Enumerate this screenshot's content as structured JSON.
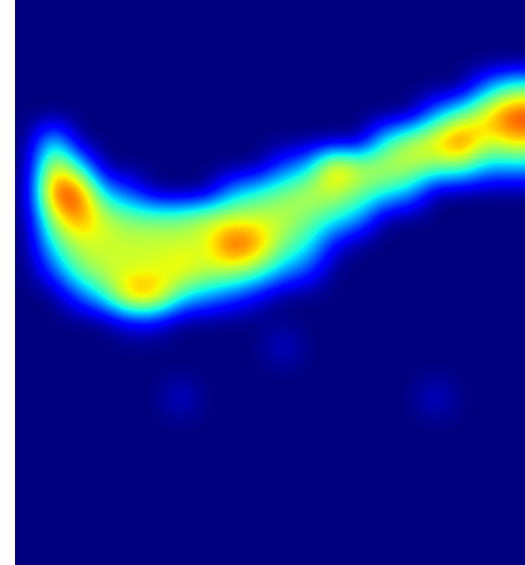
{
  "chart_data": {
    "type": "heatmap",
    "color": "jet",
    "tick_labels": false,
    "zlim": [
      0,
      1
    ],
    "cells": [
      [
        0,
        0,
        0,
        0,
        0,
        0,
        0,
        0,
        0,
        0,
        0,
        0,
        0,
        0,
        0,
        0,
        0,
        0,
        0,
        0
      ],
      [
        0,
        0,
        0,
        0,
        0,
        0,
        0,
        0,
        0,
        0,
        0,
        0,
        0,
        0,
        0,
        0,
        0,
        0,
        0,
        0
      ],
      [
        0,
        0,
        0,
        0,
        0,
        0,
        0,
        0,
        0,
        0,
        0,
        0,
        0,
        0,
        0,
        0,
        0,
        0,
        0,
        0
      ],
      [
        0,
        0,
        0,
        0,
        0,
        0,
        0,
        0,
        0,
        0,
        0,
        0,
        0,
        0,
        0,
        0,
        0,
        0,
        0.3,
        0.5
      ],
      [
        0,
        0,
        0,
        0,
        0,
        0,
        0,
        0,
        0,
        0,
        0,
        0,
        0,
        0,
        0,
        0,
        0.3,
        0.5,
        0.7,
        0.9
      ],
      [
        0,
        0.4,
        0,
        0,
        0,
        0,
        0,
        0,
        0,
        0,
        0,
        0,
        0,
        0,
        0.4,
        0.6,
        0.7,
        0.9,
        0.6,
        0.7
      ],
      [
        0,
        0.7,
        0.4,
        0,
        0,
        0,
        0,
        0,
        0,
        0,
        0.2,
        0.3,
        0.8,
        0.6,
        0.6,
        0.6,
        0.5,
        0.5,
        0.3,
        0.3
      ],
      [
        0,
        0.9,
        0.9,
        0.3,
        0.2,
        0,
        0,
        0,
        0.3,
        0.4,
        0.5,
        0.6,
        0.6,
        0.5,
        0.4,
        0.3,
        0,
        0,
        0,
        0
      ],
      [
        0,
        0.6,
        0.8,
        0.6,
        0.5,
        0.5,
        0.5,
        0.6,
        0.6,
        0.6,
        0.6,
        0.5,
        0.4,
        0.3,
        0,
        0,
        0,
        0,
        0,
        0
      ],
      [
        0,
        0.4,
        0.6,
        0.6,
        0.6,
        0.6,
        0.6,
        0.6,
        0.9,
        0.8,
        0.5,
        0.4,
        0.1,
        0,
        0,
        0,
        0,
        0,
        0,
        0
      ],
      [
        0,
        0.2,
        0.5,
        0.6,
        0.6,
        0.6,
        0.7,
        0.6,
        0.6,
        0.5,
        0.3,
        0.2,
        0,
        0,
        0,
        0,
        0,
        0,
        0,
        0
      ],
      [
        0,
        0,
        0.2,
        0.4,
        0.8,
        0.8,
        0.4,
        0.3,
        0.2,
        0.1,
        0,
        0,
        0,
        0,
        0,
        0,
        0,
        0,
        0,
        0
      ],
      [
        0,
        0,
        0,
        0,
        0.1,
        0.1,
        0,
        0,
        0,
        0,
        0,
        0,
        0,
        0,
        0,
        0,
        0,
        0,
        0,
        0
      ],
      [
        0,
        0,
        0,
        0,
        0,
        0,
        0,
        0,
        0,
        0,
        0.1,
        0,
        0,
        0,
        0,
        0,
        0,
        0,
        0,
        0
      ],
      [
        0,
        0,
        0,
        0,
        0,
        0,
        0,
        0,
        0,
        0,
        0,
        0,
        0,
        0,
        0,
        0,
        0,
        0,
        0,
        0
      ],
      [
        0,
        0,
        0,
        0,
        0,
        0,
        0.1,
        0,
        0,
        0,
        0,
        0,
        0,
        0,
        0,
        0,
        0.1,
        0,
        0,
        0
      ],
      [
        0,
        0,
        0,
        0,
        0,
        0,
        0,
        0,
        0,
        0,
        0,
        0,
        0,
        0,
        0,
        0,
        0,
        0,
        0,
        0
      ],
      [
        0,
        0,
        0,
        0,
        0,
        0,
        0,
        0,
        0,
        0,
        0,
        0,
        0,
        0,
        0,
        0,
        0,
        0,
        0,
        0
      ],
      [
        0,
        0,
        0,
        0,
        0,
        0,
        0,
        0,
        0,
        0,
        0,
        0,
        0,
        0,
        0,
        0,
        0,
        0,
        0,
        0
      ],
      [
        0,
        0,
        0,
        0,
        0,
        0,
        0,
        0,
        0,
        0,
        0,
        0,
        0,
        0,
        0,
        0,
        0,
        0,
        0,
        0
      ],
      [
        0,
        0,
        0,
        0,
        0,
        0,
        0,
        0,
        0,
        0,
        0,
        0,
        0,
        0,
        0,
        0,
        0,
        0,
        0,
        0
      ],
      [
        0,
        0,
        0,
        0,
        0,
        0,
        0,
        0,
        0,
        0,
        0,
        0,
        0,
        0,
        0,
        0,
        0,
        0,
        0,
        0
      ]
    ]
  }
}
